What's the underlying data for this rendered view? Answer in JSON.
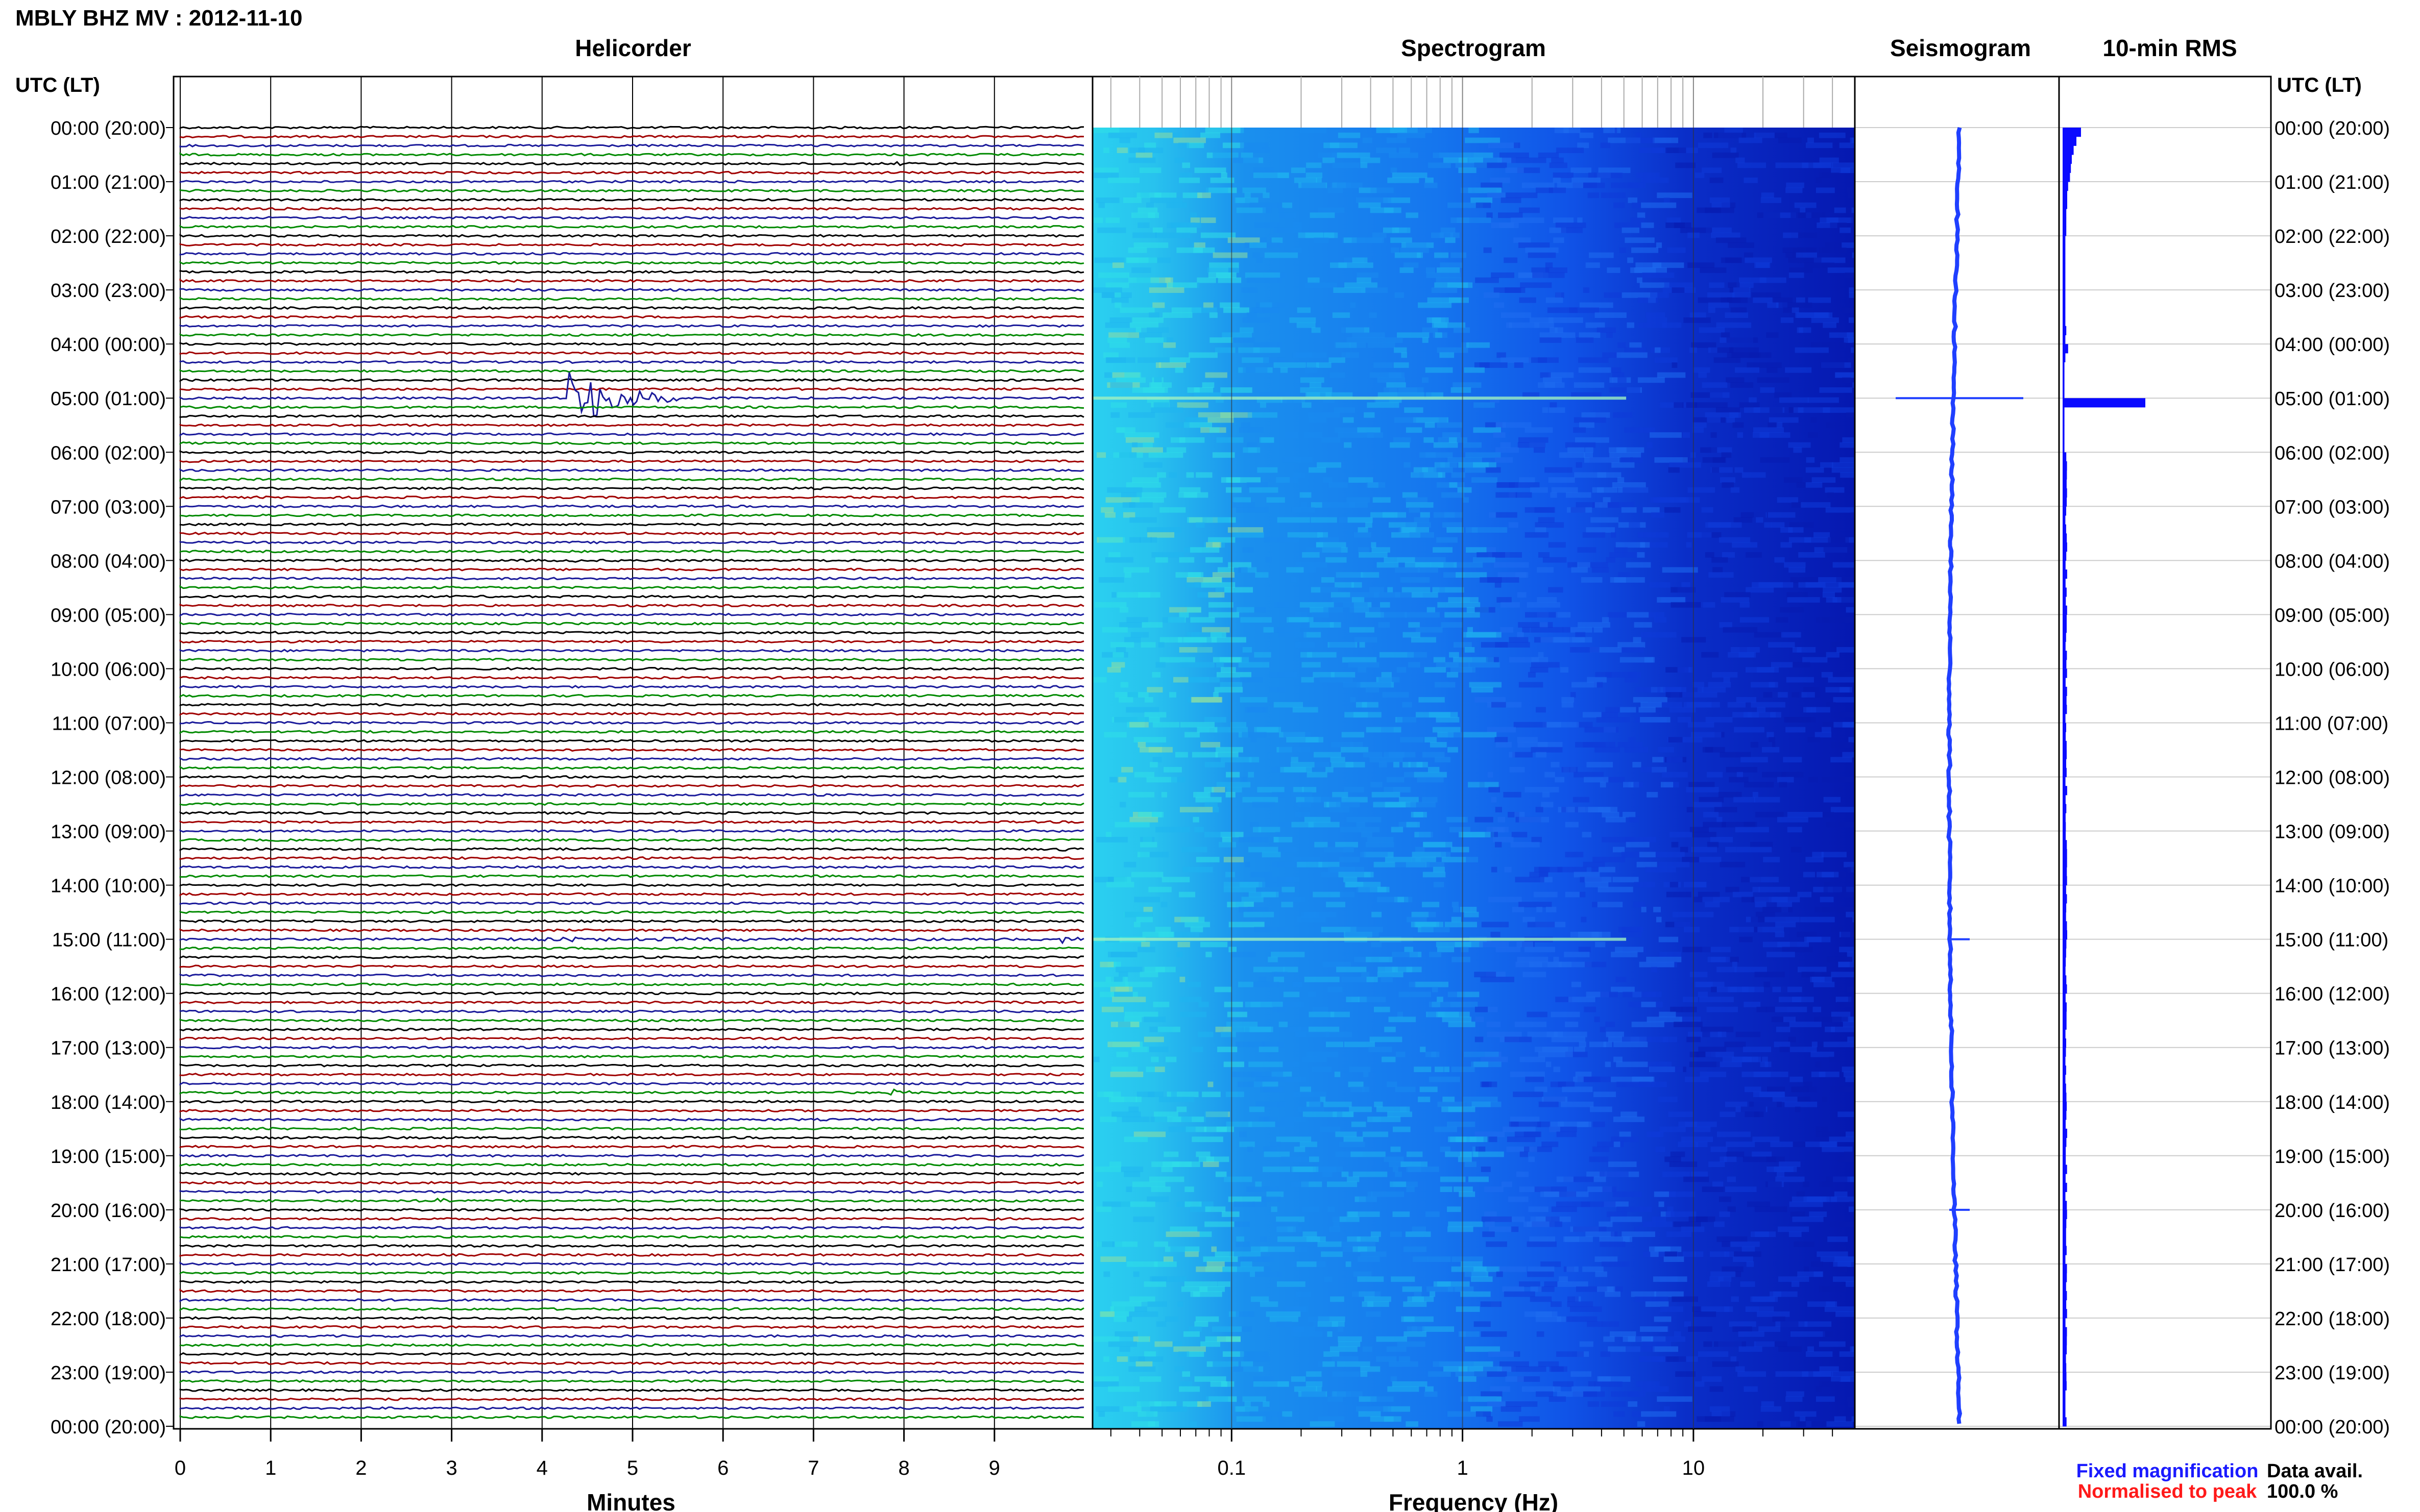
{
  "header": {
    "title": "MBLY BHZ MV : 2012-11-10",
    "utc_label_left": "UTC (LT)",
    "utc_label_right": "UTC (LT)"
  },
  "panels": {
    "helicorder": "Helicorder",
    "spectrogram": "Spectrogram",
    "seismogram": "Seismogram",
    "rms": "10-min RMS"
  },
  "time_labels": [
    "00:00 (20:00)",
    "01:00 (21:00)",
    "02:00 (22:00)",
    "03:00 (23:00)",
    "04:00 (00:00)",
    "05:00 (01:00)",
    "06:00 (02:00)",
    "07:00 (03:00)",
    "08:00 (04:00)",
    "09:00 (05:00)",
    "10:00 (06:00)",
    "11:00 (07:00)",
    "12:00 (08:00)",
    "13:00 (09:00)",
    "14:00 (10:00)",
    "15:00 (11:00)",
    "16:00 (12:00)",
    "17:00 (13:00)",
    "18:00 (14:00)",
    "19:00 (15:00)",
    "20:00 (16:00)",
    "21:00 (17:00)",
    "22:00 (18:00)",
    "23:00 (19:00)",
    "00:00 (20:00)"
  ],
  "legend": {
    "fixed": "Fixed magnification",
    "normalised": "Normalised to peak",
    "data_avail_label": "Data avail.",
    "data_avail_value": "100.0 %"
  },
  "colors": {
    "fixed": "#1a1aff",
    "normalised": "#ff1a1a",
    "trace_cycle": [
      "#000000",
      "#a00000",
      "#1a1a9a",
      "#008a00"
    ],
    "rms_bar": "#0a0aff",
    "seismo_trace": "#1f3fff"
  },
  "chart_data": [
    {
      "type": "line",
      "panel": "Helicorder",
      "xlabel": "Minutes",
      "xticks": [
        0,
        1,
        2,
        3,
        4,
        5,
        6,
        7,
        8,
        9
      ],
      "xlim": [
        0,
        10
      ],
      "rows_per_hour": 6,
      "hours": 24,
      "events": [
        {
          "row": 4,
          "minute": 7.9,
          "amp": 0.3,
          "dur": 0.15
        },
        {
          "row": 11,
          "minute": 8.6,
          "amp": 0.25,
          "dur": 0.05
        },
        {
          "row": 30,
          "minute": 4.3,
          "amp": 3.5,
          "dur": 1.2
        },
        {
          "row": 48,
          "minute": 4.35,
          "amp": 0.2,
          "dur": 0.05
        },
        {
          "row": 80,
          "minute": 9.7,
          "amp": 0.5,
          "dur": 0.3
        },
        {
          "row": 90,
          "minute": 3.6,
          "amp": 0.2,
          "dur": 6.2
        },
        {
          "row": 90,
          "minute": 9.75,
          "amp": 0.4,
          "dur": 0.3
        },
        {
          "row": 107,
          "minute": 7.85,
          "amp": 0.35,
          "dur": 0.3
        },
        {
          "row": 112,
          "minute": 8.3,
          "amp": 0.25,
          "dur": 0.3
        },
        {
          "row": 119,
          "minute": 2.8,
          "amp": 0.5,
          "dur": 0.3
        }
      ]
    },
    {
      "type": "heatmap",
      "panel": "Spectrogram",
      "xlabel": "Frequency (Hz)",
      "xscale": "log",
      "xlim": [
        0.025,
        50
      ],
      "xticks": [
        0.1,
        1,
        10
      ],
      "xtick_labels": [
        "0.1",
        "1",
        "10"
      ]
    },
    {
      "type": "line",
      "panel": "Seismogram",
      "spikes_at_hours": [
        5,
        15,
        20
      ]
    },
    {
      "type": "bar",
      "panel": "10-min RMS",
      "orientation": "horizontal",
      "values_relative": [
        0.2,
        0.15,
        0.12,
        0.1,
        0.09,
        0.08,
        0.06,
        0.05,
        0.05,
        0.04,
        0.04,
        0.04,
        0.03,
        0.03,
        0.03,
        0.03,
        0.03,
        0.03,
        0.03,
        0.03,
        0.03,
        0.03,
        0.04,
        0.03,
        0.06,
        0.03,
        0.02,
        0.02,
        0.02,
        0.02,
        0.9,
        0.02,
        0.02,
        0.02,
        0.02,
        0.02
      ]
    }
  ]
}
